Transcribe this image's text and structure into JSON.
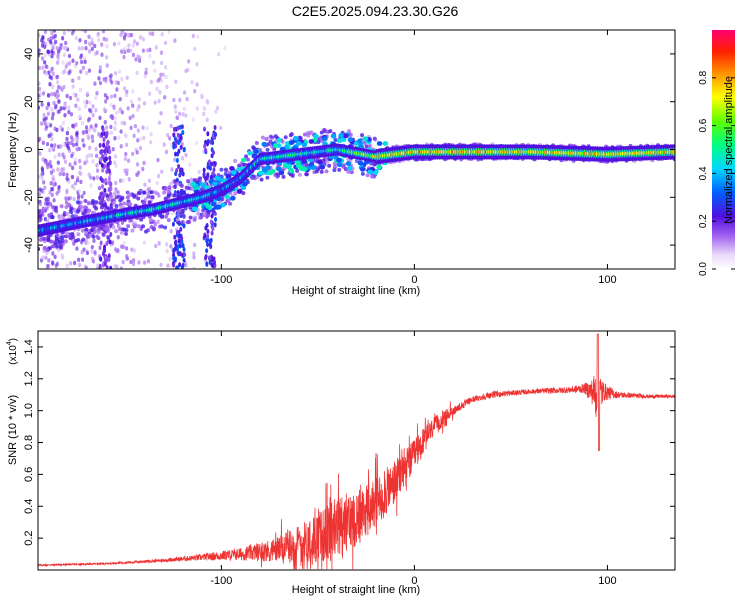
{
  "figure_title": "C2E5.2025.094.23.30.G26",
  "chart_data": [
    {
      "type": "heatmap",
      "title": "C2E5.2025.094.23.30.G26",
      "xlabel": "Height of straight line (km)",
      "ylabel": "Frequency (Hz)",
      "xlim": [
        -195,
        135
      ],
      "ylim": [
        -50,
        50
      ],
      "xticks": [
        -100,
        0,
        100
      ],
      "yticks": [
        -40,
        -20,
        0,
        20,
        40
      ],
      "colorbar": {
        "label": "Normalized spectral amplitude",
        "range": [
          0,
          1
        ],
        "ticks": [
          0.0,
          0.2,
          0.4,
          0.6,
          0.8
        ],
        "tick_labels": [
          "0.0",
          "0.2",
          "0.4",
          "0.6",
          "0.8"
        ]
      },
      "ridge": {
        "x": [
          -195,
          -170,
          -150,
          -135,
          -125,
          -110,
          -100,
          -90,
          -80,
          -60,
          -40,
          -20,
          0,
          20,
          60,
          100,
          135
        ],
        "freq": [
          -34,
          -30,
          -27,
          -25,
          -23,
          -20,
          -17,
          -12,
          -4,
          -2,
          0,
          -3,
          -1,
          -1,
          -1,
          -2,
          -1
        ],
        "amp": [
          0.35,
          0.4,
          0.45,
          0.5,
          0.45,
          0.4,
          0.35,
          0.35,
          0.45,
          0.5,
          0.45,
          0.7,
          0.75,
          0.75,
          0.7,
          0.75,
          0.7
        ]
      }
    },
    {
      "type": "line",
      "xlabel": "Height of straight line (km)",
      "ylabel": "SNR (10 * v/v)",
      "exponent_label": "(x10",
      "exponent_value": "4",
      "exponent_close": ")",
      "xlim": [
        -195,
        135
      ],
      "ylim": [
        0,
        1.5
      ],
      "xticks": [
        -100,
        0,
        100
      ],
      "yticks": [
        0.2,
        0.4,
        0.6,
        0.8,
        1.0,
        1.2,
        1.4
      ],
      "ytick_labels": [
        "0.2",
        "0.4",
        "0.6",
        "0.8",
        "1.0",
        "1.2",
        "1.4"
      ],
      "series": [
        {
          "name": "SNR",
          "color": "#ee3333",
          "x": [
            -195,
            -160,
            -130,
            -110,
            -90,
            -70,
            -50,
            -40,
            -30,
            -20,
            -10,
            0,
            10,
            20,
            30,
            40,
            60,
            80,
            88,
            92,
            95,
            98,
            105,
            120,
            135
          ],
          "mean": [
            0.03,
            0.04,
            0.06,
            0.08,
            0.1,
            0.13,
            0.2,
            0.26,
            0.33,
            0.42,
            0.55,
            0.72,
            0.9,
            1.0,
            1.07,
            1.1,
            1.12,
            1.13,
            1.14,
            1.12,
            1.1,
            1.12,
            1.1,
            1.09,
            1.09
          ],
          "spread": [
            0.005,
            0.005,
            0.01,
            0.02,
            0.04,
            0.08,
            0.16,
            0.2,
            0.18,
            0.16,
            0.14,
            0.1,
            0.06,
            0.03,
            0.02,
            0.02,
            0.015,
            0.02,
            0.03,
            0.08,
            0.2,
            0.06,
            0.02,
            0.012,
            0.01
          ]
        }
      ]
    }
  ]
}
